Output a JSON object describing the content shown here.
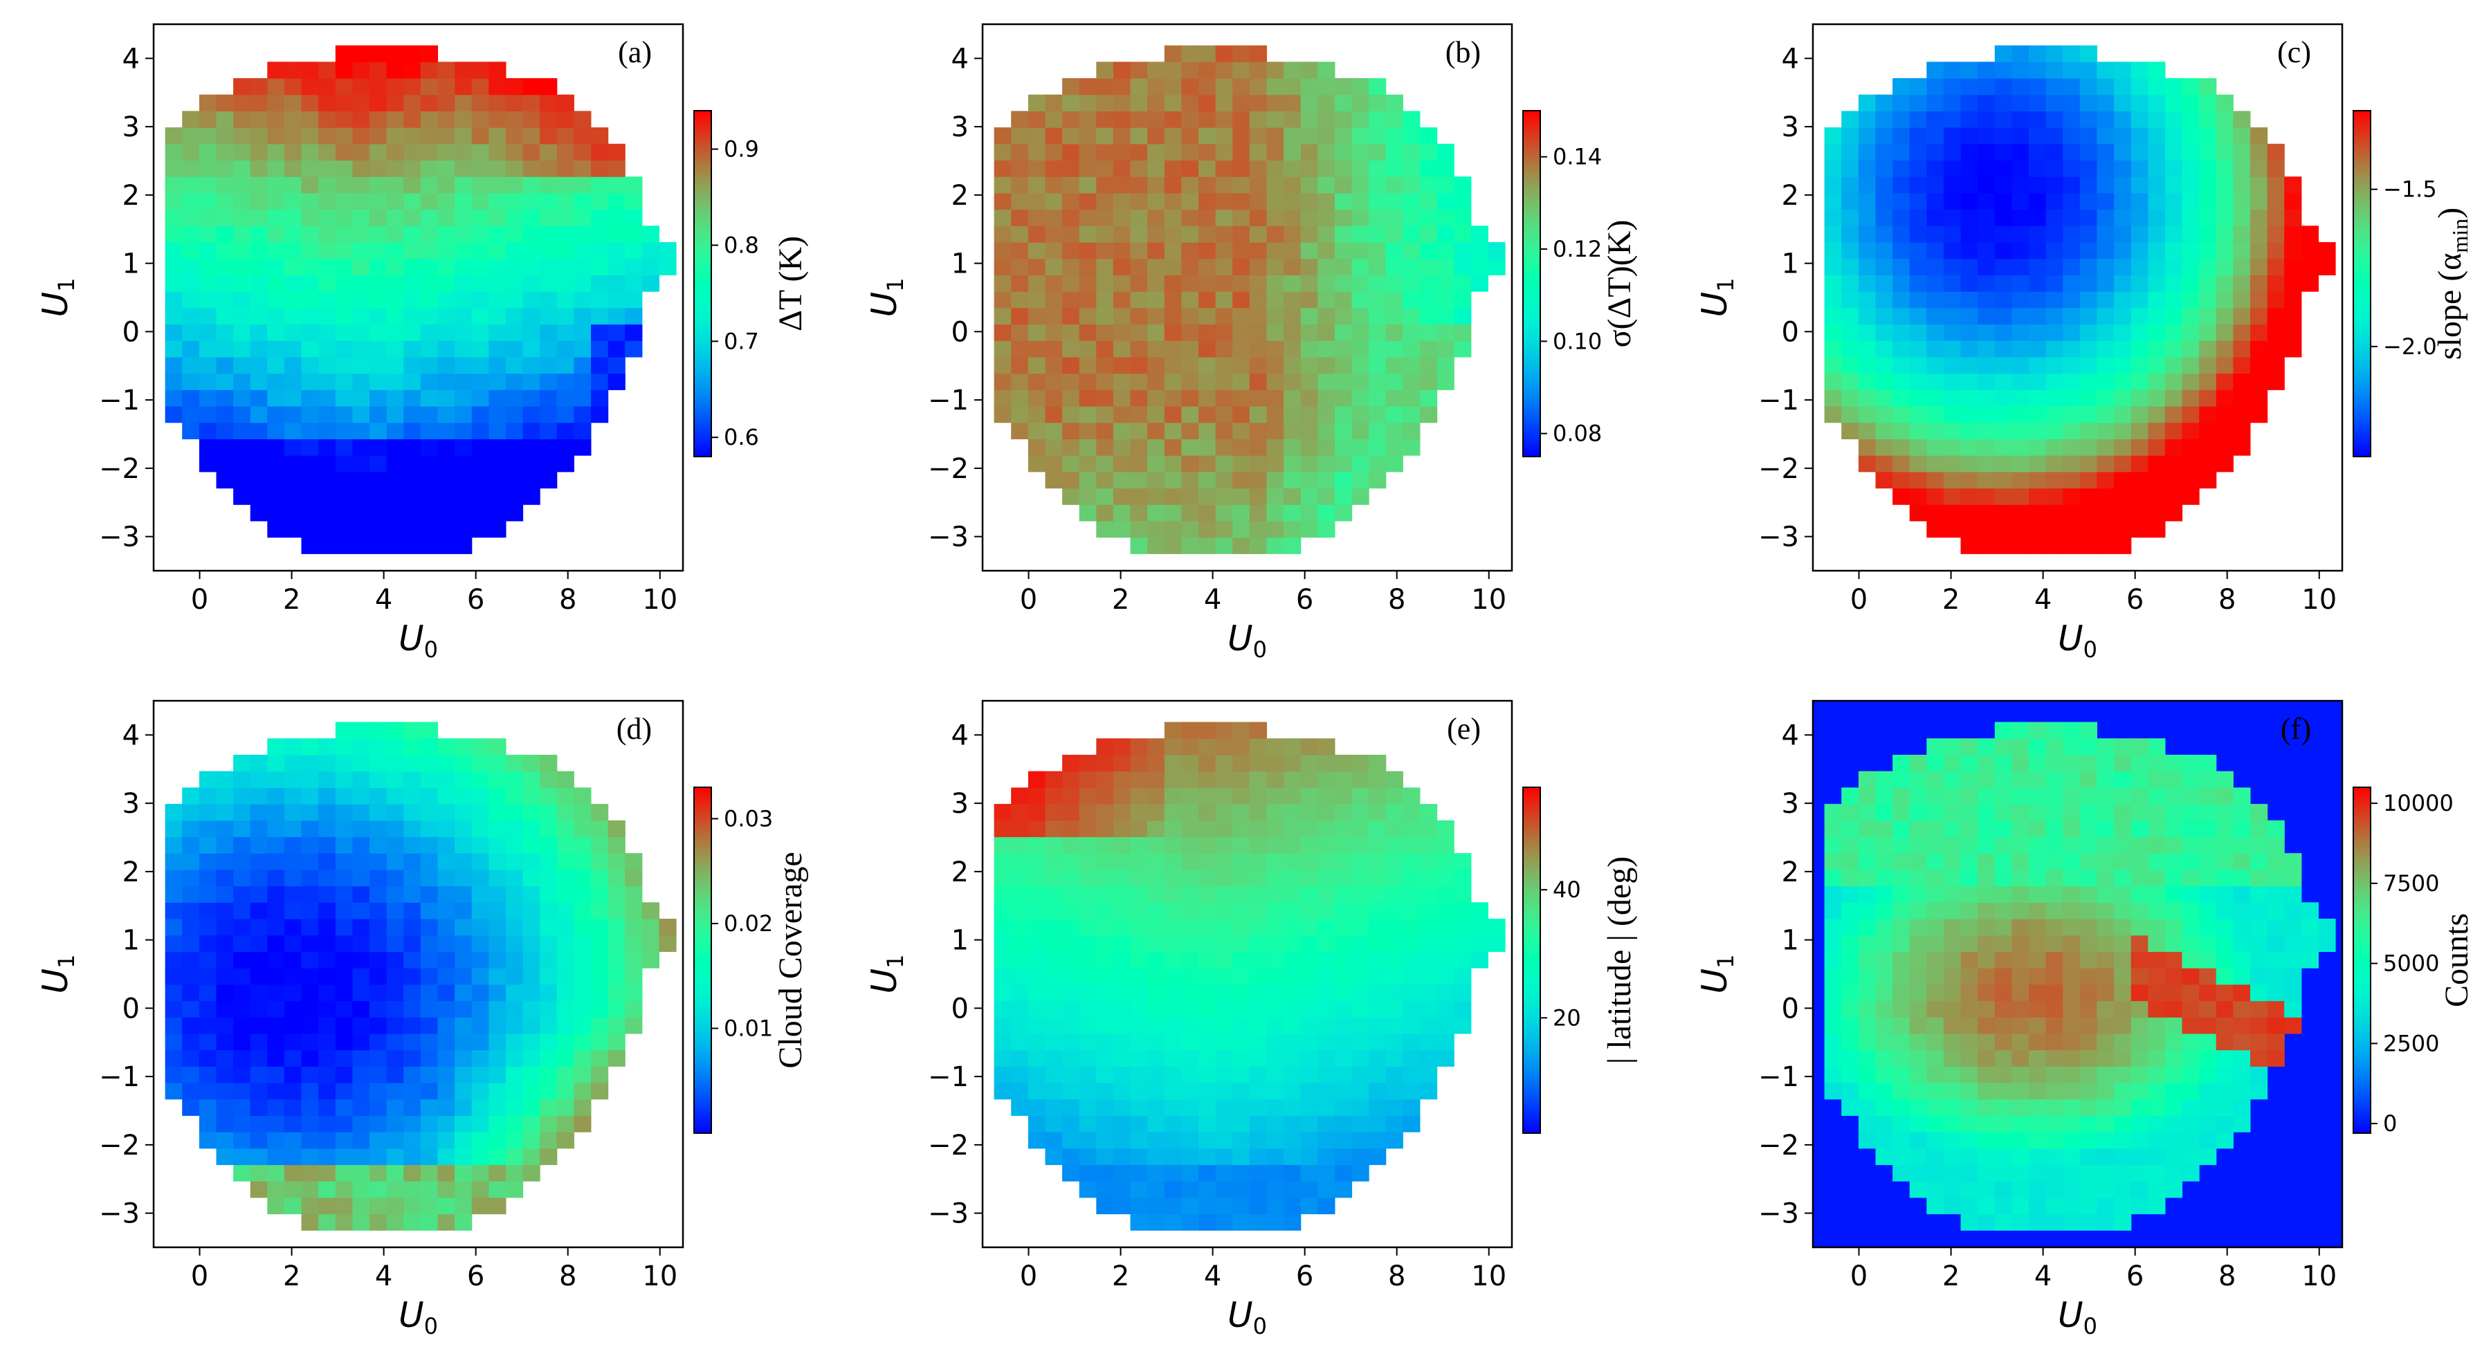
{
  "chart_data": [
    {
      "panel": "(a)",
      "type": "heatmap",
      "xlabel": "U",
      "xlabel_sub": "0",
      "ylabel": "U",
      "ylabel_sub": "1",
      "xlim": [
        -1,
        10.5
      ],
      "ylim": [
        -3.5,
        4.5
      ],
      "xticks": [
        0,
        2,
        4,
        6,
        8,
        10
      ],
      "yticks": [
        -3,
        -2,
        -1,
        0,
        1,
        2,
        3,
        4
      ],
      "colorbar": {
        "label": "ΔT (K)",
        "min": 0.58,
        "max": 0.94,
        "ticks": [
          0.6,
          0.7,
          0.8,
          0.9
        ]
      },
      "field": "a"
    },
    {
      "panel": "(b)",
      "type": "heatmap",
      "xlabel": "U",
      "xlabel_sub": "0",
      "ylabel": "U",
      "ylabel_sub": "1",
      "xlim": [
        -1,
        10.5
      ],
      "ylim": [
        -3.5,
        4.5
      ],
      "xticks": [
        0,
        2,
        4,
        6,
        8,
        10
      ],
      "yticks": [
        -3,
        -2,
        -1,
        0,
        1,
        2,
        3,
        4
      ],
      "colorbar": {
        "label": "σ(ΔT)(K)",
        "min": 0.075,
        "max": 0.15,
        "ticks": [
          0.08,
          0.1,
          0.12,
          0.14
        ],
        "tick_text": [
          "0.08",
          "0.10",
          "0.12",
          "0.14"
        ]
      },
      "field": "b"
    },
    {
      "panel": "(c)",
      "type": "heatmap",
      "xlabel": "U",
      "xlabel_sub": "0",
      "ylabel": "U",
      "ylabel_sub": "1",
      "xlim": [
        -1,
        10.5
      ],
      "ylim": [
        -3.5,
        4.5
      ],
      "xticks": [
        0,
        2,
        4,
        6,
        8,
        10
      ],
      "yticks": [
        -3,
        -2,
        -1,
        0,
        1,
        2,
        3,
        4
      ],
      "colorbar": {
        "label": "slope (α",
        "label_sub": "min",
        "label_end": ")",
        "min": -2.35,
        "max": -1.25,
        "ticks": [
          -2.0,
          -1.5
        ],
        "tick_text": [
          "−2.0",
          "−1.5"
        ]
      },
      "field": "c"
    },
    {
      "panel": "(d)",
      "type": "heatmap",
      "xlabel": "U",
      "xlabel_sub": "0",
      "ylabel": "U",
      "ylabel_sub": "1",
      "xlim": [
        -1,
        10.5
      ],
      "ylim": [
        -3.5,
        4.5
      ],
      "xticks": [
        0,
        2,
        4,
        6,
        8,
        10
      ],
      "yticks": [
        -3,
        -2,
        -1,
        0,
        1,
        2,
        3,
        4
      ],
      "colorbar": {
        "label": "Cloud Coverage",
        "min": 0.0,
        "max": 0.033,
        "ticks": [
          0.01,
          0.02,
          0.03
        ]
      },
      "field": "d"
    },
    {
      "panel": "(e)",
      "type": "heatmap",
      "xlabel": "U",
      "xlabel_sub": "0",
      "ylabel": "U",
      "ylabel_sub": "1",
      "xlim": [
        -1,
        10.5
      ],
      "ylim": [
        -3.5,
        4.5
      ],
      "xticks": [
        0,
        2,
        4,
        6,
        8,
        10
      ],
      "yticks": [
        -3,
        -2,
        -1,
        0,
        1,
        2,
        3,
        4
      ],
      "colorbar": {
        "label": "| latitude | (deg)",
        "min": 2,
        "max": 56,
        "ticks": [
          20,
          40
        ]
      },
      "field": "e"
    },
    {
      "panel": "(f)",
      "type": "heatmap",
      "xlabel": "U",
      "xlabel_sub": "0",
      "ylabel": "U",
      "ylabel_sub": "1",
      "xlim": [
        -1,
        10.5
      ],
      "ylim": [
        -3.5,
        4.5
      ],
      "xticks": [
        0,
        2,
        4,
        6,
        8,
        10
      ],
      "yticks": [
        -3,
        -2,
        -1,
        0,
        1,
        2,
        3,
        4
      ],
      "colorbar": {
        "label": "Counts",
        "min": -300,
        "max": 10500,
        "ticks": [
          0,
          2500,
          5000,
          7500,
          10000
        ]
      },
      "field": "f"
    }
  ]
}
